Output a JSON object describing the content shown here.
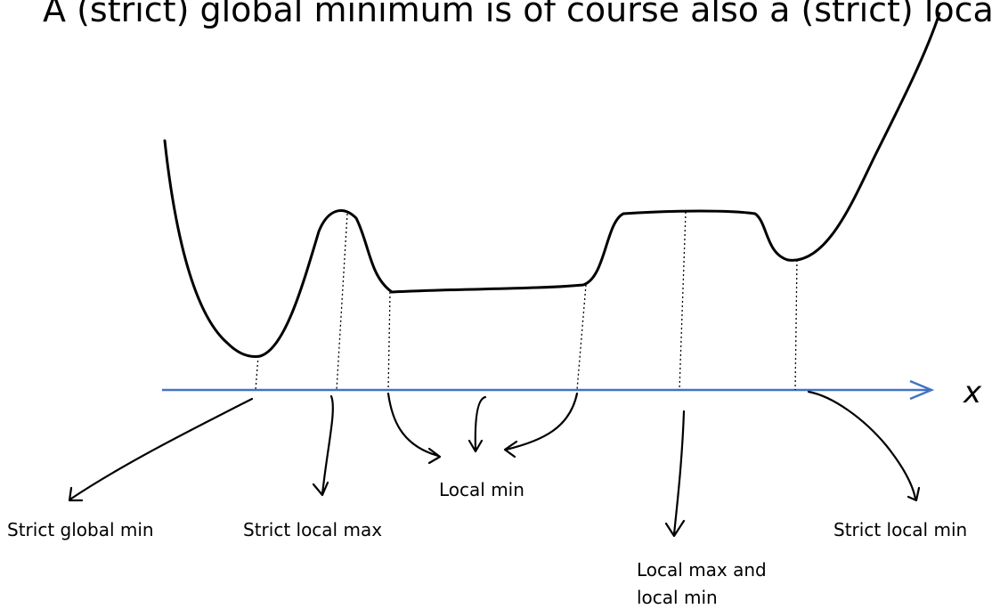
{
  "title": "A (strict) global minimum is of course also a (strict) local min",
  "axis_label": "x",
  "labels": [
    {
      "lines": [
        "Strict global min"
      ]
    },
    {
      "lines": [
        "Strict local max"
      ]
    },
    {
      "lines": [
        "Local min"
      ]
    },
    {
      "lines": [
        "Local max and",
        "local min"
      ]
    },
    {
      "lines": [
        "Strict local min"
      ]
    }
  ]
}
